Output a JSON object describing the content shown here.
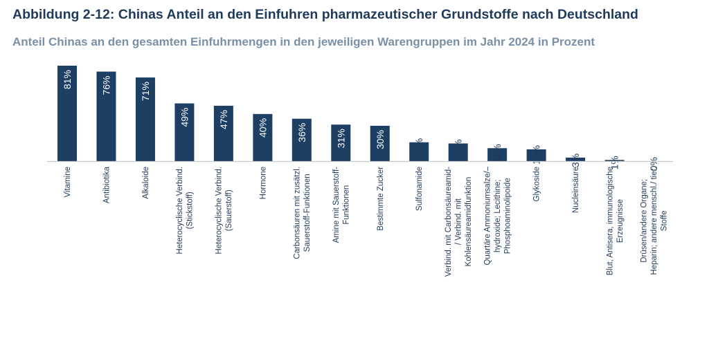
{
  "chart_data": {
    "type": "bar",
    "title": "Abbildung 2-12: Chinas Anteil an den Einfuhren pharmazeutischer Grundstoffe nach Deutschland",
    "subtitle": "Anteil Chinas an den gesamten Einfuhrmengen in den jeweiligen Warengruppen im Jahr 2024 in Prozent",
    "xlabel": "",
    "ylabel": "",
    "ylim": [
      0,
      81
    ],
    "grid": false,
    "unit": "%",
    "bar_color": "#1d3f63",
    "categories": [
      "Vitamine",
      "Antibiotika",
      "Alkaloide",
      "Heterocyclische Verbind. (Stickstoff)",
      "Heterocyclische Verbind. (Sauerstoff)",
      "Hormone",
      "Carbonsäuren mit zusätzl. Sauerstoff-Funktionen",
      "Amine mit Sauerstoff-Funktionen",
      "Bestimmte Zucker",
      "Sulfonamide",
      "Verbind. mit Carbonsäureamid- / Verbind. mit Kohlensäureamidfunktion",
      "Quartäre Ammoniumsalze/–hydroxide; Lecithine; Phosphoaminolipoide",
      "Glykoside",
      "Nucleinsäure",
      "Blut, Antisera, immunologische Erzeugnisse",
      "Drüsen/andere Organe; Heparin; andere menschl./ tier. Stoffe"
    ],
    "category_lines": [
      [
        "Vitamine"
      ],
      [
        "Antibiotika"
      ],
      [
        "Alkaloide"
      ],
      [
        "Heterocyclische Verbind.",
        "(Stickstoff)"
      ],
      [
        "Heterocyclische Verbind.",
        "(Sauerstoff)"
      ],
      [
        "Hormone"
      ],
      [
        "Carbonsäuren mit zusätzl.",
        "Sauerstoff-Funktionen"
      ],
      [
        "Amine mit Sauerstoff-",
        "Funktionen"
      ],
      [
        "Bestimmte Zucker"
      ],
      [
        "Sulfonamide"
      ],
      [
        "Verbind. mit Carbonsäureamid-",
        "/ Verbind. mit",
        "Kohlensäureamidfunktion"
      ],
      [
        "Quartäre Ammoniumsalze/–",
        "hydroxide; Lecithine;",
        "Phosphoaminolipoide"
      ],
      [
        "Glykoside"
      ],
      [
        "Nucleinsäure"
      ],
      [
        "Blut, Antisera, immunologische",
        "Erzeugnisse"
      ],
      [
        "Drüsen/andere Organe;",
        "Heparin; andere menschl./ tier.",
        "Stoffe"
      ]
    ],
    "values": [
      81,
      76,
      71,
      49,
      47,
      40,
      36,
      31,
      30,
      16,
      15,
      11,
      10,
      3,
      1,
      0
    ],
    "data_labels": [
      "81%",
      "76%",
      "71%",
      "49%",
      "47%",
      "40%",
      "36%",
      "31%",
      "30%",
      "16%",
      "15%",
      "11%",
      "10%",
      "3%",
      "1%",
      "0%"
    ]
  }
}
